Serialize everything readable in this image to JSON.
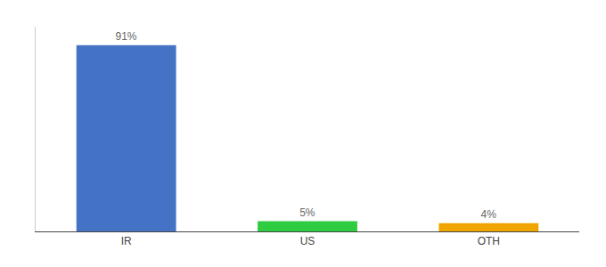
{
  "chart_data": {
    "type": "bar",
    "categories": [
      "IR",
      "US",
      "OTH"
    ],
    "values": [
      91,
      5,
      4
    ],
    "value_labels": [
      "91%",
      "5%",
      "4%"
    ],
    "colors": [
      "#4472c4",
      "#2ecc40",
      "#f0a500"
    ],
    "ylim": [
      0,
      100
    ],
    "grid": false,
    "data_labels": true,
    "tick_labels": "x"
  }
}
